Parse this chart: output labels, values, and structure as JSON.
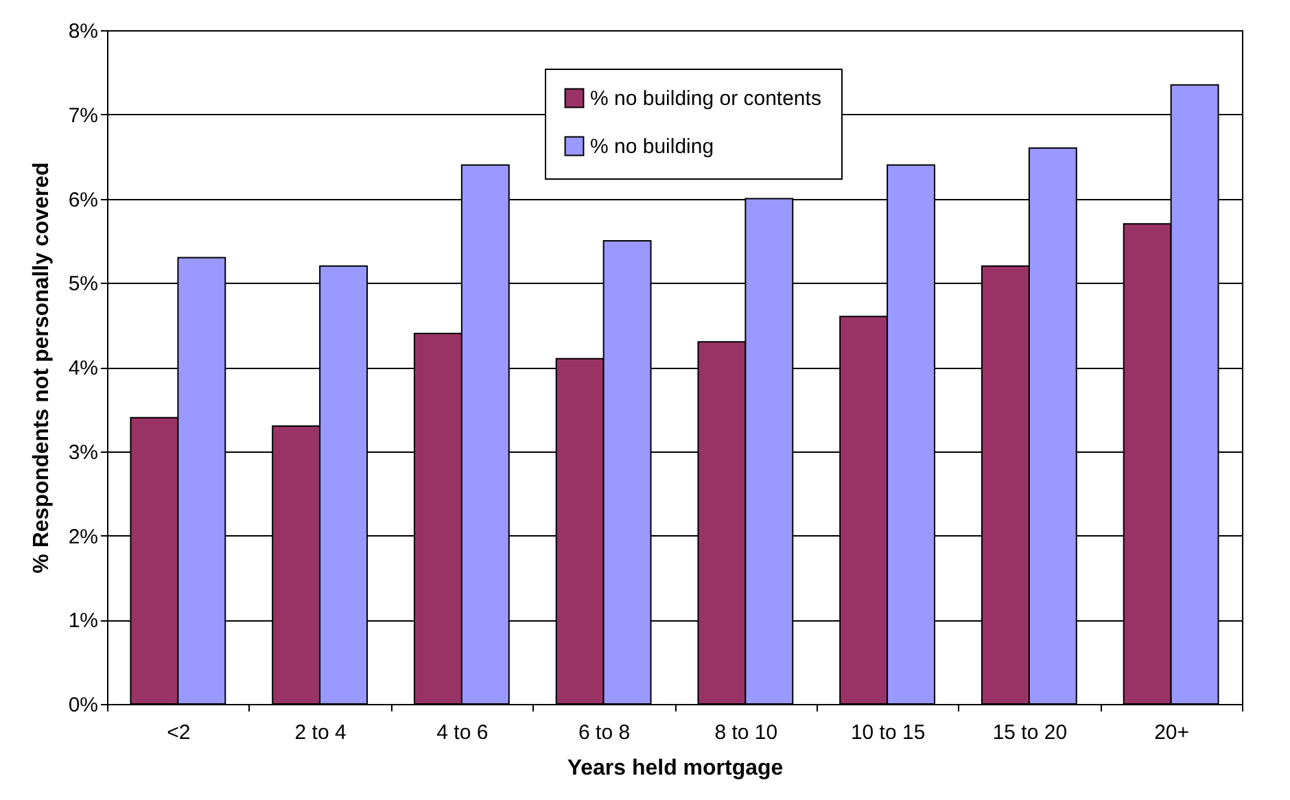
{
  "chart_data": {
    "type": "bar",
    "xlabel": "Years held mortgage",
    "ylabel": "% Respondents not personally covered",
    "categories": [
      "<2",
      "2 to 4",
      "4 to 6",
      "6 to 8",
      "8 to 10",
      "10 to 15",
      "15 to 20",
      "20+"
    ],
    "series": [
      {
        "name": "% no building or contents",
        "color": "#993366",
        "values": [
          3.4,
          3.3,
          4.4,
          4.1,
          4.3,
          4.6,
          5.2,
          5.7
        ]
      },
      {
        "name": "% no building",
        "color": "#9999ff",
        "values": [
          5.3,
          5.2,
          6.4,
          5.5,
          6.0,
          6.4,
          6.6,
          7.35
        ]
      }
    ],
    "ylim": [
      0,
      8
    ],
    "yticks": [
      {
        "value": 0,
        "label": "0%"
      },
      {
        "value": 1,
        "label": "1%"
      },
      {
        "value": 2,
        "label": "2%"
      },
      {
        "value": 3,
        "label": "3%"
      },
      {
        "value": 4,
        "label": "4%"
      },
      {
        "value": 5,
        "label": "5%"
      },
      {
        "value": 6,
        "label": "6%"
      },
      {
        "value": 7,
        "label": "7%"
      },
      {
        "value": 8,
        "label": "8%"
      }
    ],
    "grid": "y",
    "legend": "top"
  }
}
